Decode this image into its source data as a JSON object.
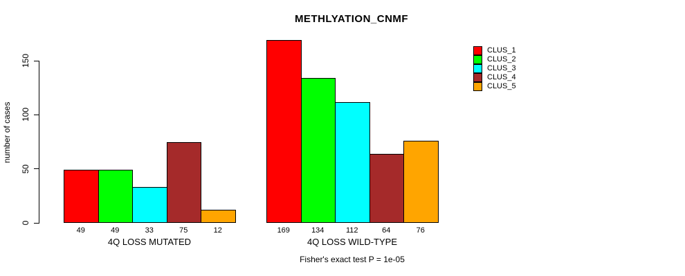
{
  "title": "METHLYATION_CNMF",
  "footer": "Fisher's exact test P = 1e-05",
  "y_axis": {
    "label": "number of cases",
    "ticks": [
      0,
      50,
      100,
      150
    ]
  },
  "legend": [
    {
      "label": "CLUS_1",
      "color": "#FF0000"
    },
    {
      "label": "CLUS_2",
      "color": "#00FF00"
    },
    {
      "label": "CLUS_3",
      "color": "#00FFFF"
    },
    {
      "label": "CLUS_4",
      "color": "#A52A2A"
    },
    {
      "label": "CLUS_5",
      "color": "#FFA500"
    }
  ],
  "chart_data": {
    "type": "bar",
    "title": "METHLYATION_CNMF",
    "xlabel": "",
    "ylabel": "number of cases",
    "ylim": [
      0,
      169
    ],
    "y_ticks": [
      0,
      50,
      100,
      150
    ],
    "grid": false,
    "legend_position": "top-right",
    "categories": [
      "4Q LOSS MUTATED",
      "4Q LOSS WILD-TYPE"
    ],
    "series": [
      {
        "name": "CLUS_1",
        "color": "#FF0000",
        "values": [
          49,
          169
        ]
      },
      {
        "name": "CLUS_2",
        "color": "#00FF00",
        "values": [
          49,
          134
        ]
      },
      {
        "name": "CLUS_3",
        "color": "#00FFFF",
        "values": [
          33,
          112
        ]
      },
      {
        "name": "CLUS_4",
        "color": "#A52A2A",
        "values": [
          75,
          64
        ]
      },
      {
        "name": "CLUS_5",
        "color": "#FFA500",
        "values": [
          12,
          76
        ]
      }
    ],
    "bar_value_labels": {
      "4Q LOSS MUTATED": [
        49,
        49,
        33,
        75,
        12
      ],
      "4Q LOSS WILD-TYPE": [
        169,
        134,
        112,
        64,
        76
      ]
    },
    "annotation": "Fisher's exact test P = 1e-05"
  }
}
